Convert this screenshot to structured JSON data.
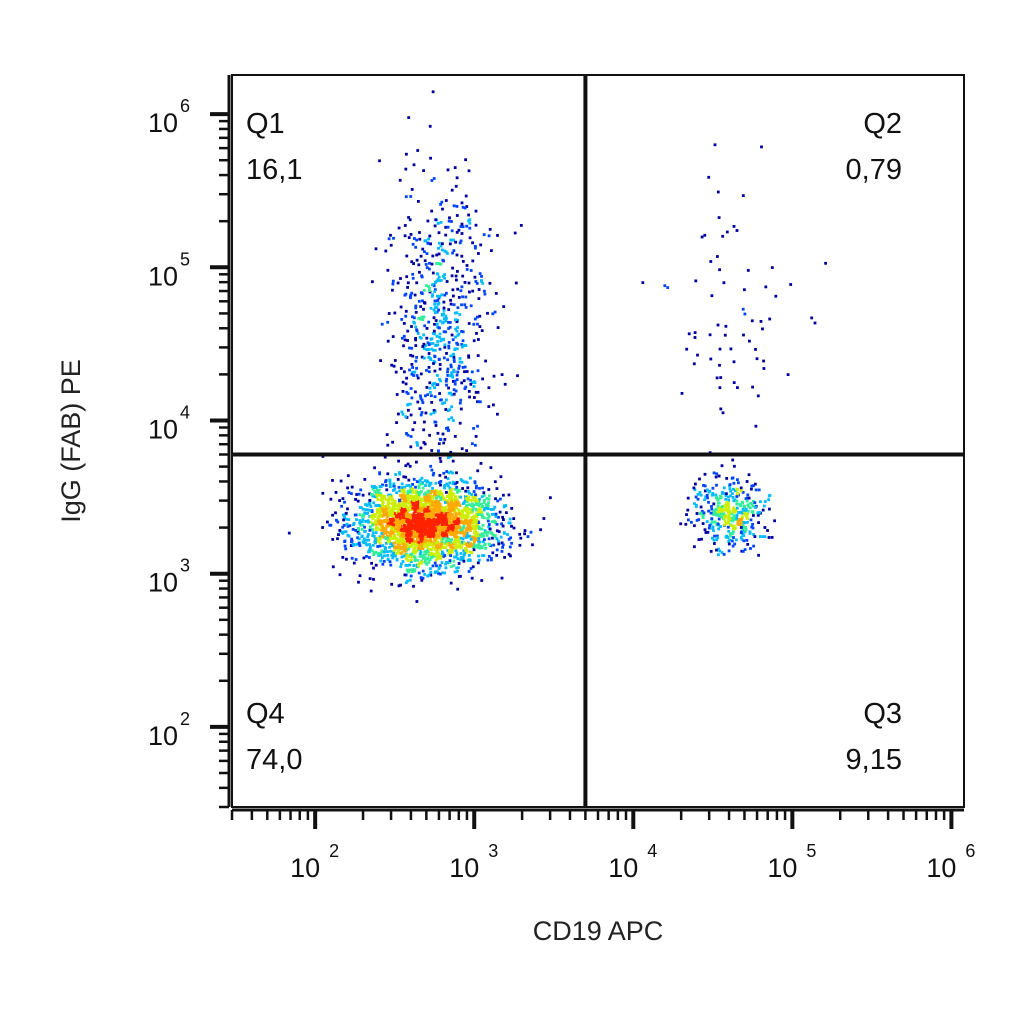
{
  "chart_data": {
    "type": "scatter",
    "subtype": "flow-cytometry-density-dot-plot",
    "xlabel": "CD19 APC",
    "ylabel": "IgG (FAB) PE",
    "x_scale": "log",
    "y_scale": "log",
    "xlim": [
      30,
      1200000
    ],
    "ylim": [
      30,
      1800000
    ],
    "x_ticks": [
      {
        "value": 100,
        "base": "10",
        "exp": "2"
      },
      {
        "value": 1000,
        "base": "10",
        "exp": "3"
      },
      {
        "value": 10000,
        "base": "10",
        "exp": "4"
      },
      {
        "value": 100000,
        "base": "10",
        "exp": "5"
      },
      {
        "value": 1000000,
        "base": "10",
        "exp": "6"
      }
    ],
    "y_ticks": [
      {
        "value": 100,
        "base": "10",
        "exp": "2"
      },
      {
        "value": 1000,
        "base": "10",
        "exp": "3"
      },
      {
        "value": 10000,
        "base": "10",
        "exp": "4"
      },
      {
        "value": 100000,
        "base": "10",
        "exp": "5"
      },
      {
        "value": 1000000,
        "base": "10",
        "exp": "6"
      }
    ],
    "gates": {
      "x_threshold": 5000,
      "y_threshold": 6000
    },
    "quadrants": [
      {
        "name": "Q1",
        "percent": "16,1",
        "position": "top-left"
      },
      {
        "name": "Q2",
        "percent": "0,79",
        "position": "top-right"
      },
      {
        "name": "Q3",
        "percent": "9,15",
        "position": "bottom-right"
      },
      {
        "name": "Q4",
        "percent": "74,0",
        "position": "bottom-left"
      }
    ],
    "populations": [
      {
        "label": "Q4 main cluster",
        "center_x": 500,
        "center_y": 2100,
        "spread_x_decades": 0.22,
        "spread_y_decades": 0.14,
        "count": 2600
      },
      {
        "label": "Q1 IgG+ cells",
        "center_x": 600,
        "center_y": 40000,
        "spread_x_decades": 0.17,
        "spread_y_decades": 0.5,
        "count": 700
      },
      {
        "label": "Q3 CD19+ cluster",
        "center_x": 40000,
        "center_y": 2500,
        "spread_x_decades": 0.12,
        "spread_y_decades": 0.12,
        "count": 380
      },
      {
        "label": "Q2 sparse",
        "center_x": 40000,
        "center_y": 50000,
        "spread_x_decades": 0.2,
        "spread_y_decades": 0.45,
        "count": 70
      }
    ],
    "density_colors": [
      "#0000a0",
      "#0044ff",
      "#00bbff",
      "#33ee99",
      "#ccee00",
      "#ffaa00",
      "#ff2200"
    ],
    "grid": false,
    "legend": "none"
  }
}
